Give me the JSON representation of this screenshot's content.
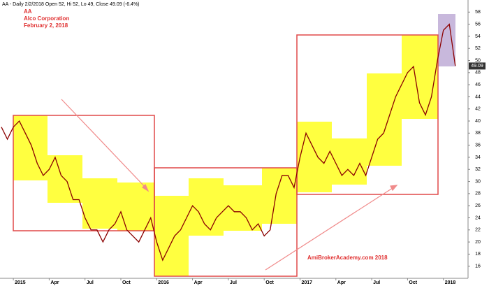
{
  "chart_data": {
    "type": "line",
    "title": "AA - Daily 2/2/2018 Open 52, Hi 52, Lo 49, Close 49.09 (-6.4%)",
    "annotations": [
      "AA",
      "Alco Corporation",
      "February 2, 2018",
      "AmiBrokerAcademy.com  2018"
    ],
    "categories": [
      null,
      null,
      "2015",
      null,
      null,
      null,
      null,
      null,
      "Apr",
      null,
      null,
      null,
      null,
      null,
      "Jul",
      null,
      null,
      null,
      null,
      null,
      "Oct",
      null,
      null,
      null,
      null,
      null,
      "2016",
      null,
      null,
      null,
      null,
      null,
      "Apr",
      null,
      null,
      null,
      null,
      null,
      "Jul",
      null,
      null,
      null,
      null,
      null,
      "Oct",
      null,
      null,
      null,
      null,
      null,
      "2017",
      null,
      null,
      null,
      null,
      null,
      "Apr",
      null,
      null,
      null,
      null,
      null,
      "Jul",
      null,
      null,
      null,
      null,
      null,
      "Oct",
      null,
      null,
      null,
      null,
      null,
      "2018",
      null,
      null
    ],
    "series": [
      {
        "name": "AA",
        "color": "#8b0000",
        "values": [
          39,
          37,
          39,
          40,
          38,
          36,
          33,
          31,
          32,
          34,
          31,
          30,
          27,
          27,
          24,
          22,
          22,
          20,
          22,
          23,
          25,
          22,
          21,
          20,
          22,
          24,
          20,
          17,
          19,
          21,
          22,
          24,
          26,
          25,
          23,
          22,
          24,
          25,
          26,
          25,
          25,
          24,
          22,
          23,
          21,
          22,
          28,
          31,
          31,
          29,
          34,
          38,
          36,
          34,
          33,
          35,
          33,
          31,
          32,
          31,
          33,
          31,
          34,
          37,
          38,
          41,
          44,
          46,
          48,
          49,
          43,
          41,
          44,
          50,
          55,
          56,
          49.09
        ]
      }
    ],
    "ylim": [
      14,
      60
    ],
    "yticks": [
      16,
      18,
      20,
      22,
      24,
      26,
      28,
      30,
      32,
      34,
      36,
      38,
      40,
      42,
      44,
      46,
      48,
      50,
      52,
      54,
      56,
      58
    ],
    "grid": false
  }
}
